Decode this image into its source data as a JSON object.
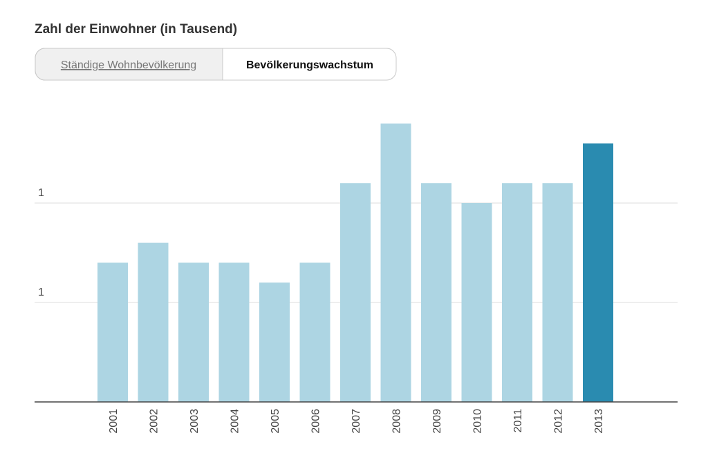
{
  "chart_data": {
    "type": "bar",
    "title": "Zahl der Einwohner (in Tausend)",
    "tabs": [
      "Ständige Wohnbevölkerung",
      "Bevölkerungswachstum"
    ],
    "categories": [
      "2001",
      "2002",
      "2003",
      "2004",
      "2005",
      "2006",
      "2007",
      "2008",
      "2009",
      "2010",
      "2011",
      "2012",
      "2013"
    ],
    "values": [
      0.7,
      0.8,
      0.7,
      0.7,
      0.6,
      0.7,
      1.1,
      1.4,
      1.1,
      1.0,
      1.1,
      1.1,
      1.3
    ],
    "colors": [
      "#add5e3",
      "#add5e3",
      "#add5e3",
      "#add5e3",
      "#add5e3",
      "#add5e3",
      "#add5e3",
      "#add5e3",
      "#add5e3",
      "#add5e3",
      "#add5e3",
      "#add5e3",
      "#2a8bb0"
    ],
    "ylim": [
      0,
      1.4
    ],
    "yticks": [
      {
        "value": 0.5,
        "label": "1"
      },
      1
    ],
    "grid": true
  }
}
